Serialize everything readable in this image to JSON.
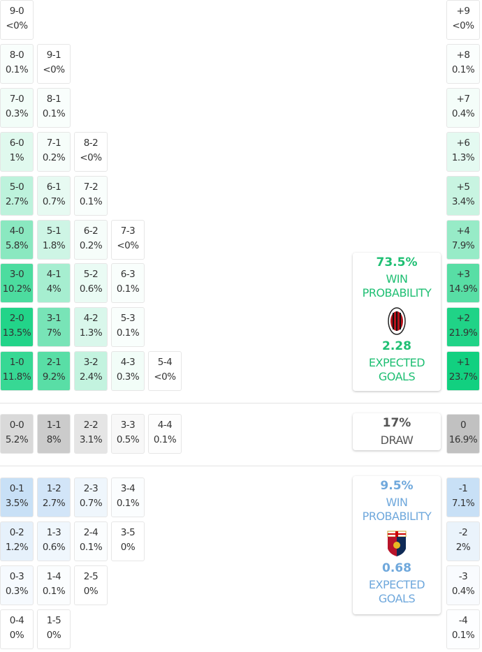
{
  "colors": {
    "home": "#00d27a",
    "away": "#5fa0d8",
    "draw": "#9a9a9a",
    "home_text": "#1fbf73",
    "away_text": "#6fa8dc",
    "draw_text": "#555555"
  },
  "home": {
    "rows": [
      [
        {
          "score": "9-0",
          "pct": "<0%"
        }
      ],
      [
        {
          "score": "8-0",
          "pct": "0.1%"
        },
        {
          "score": "9-1",
          "pct": "<0%"
        }
      ],
      [
        {
          "score": "7-0",
          "pct": "0.3%"
        },
        {
          "score": "8-1",
          "pct": "0.1%"
        }
      ],
      [
        {
          "score": "6-0",
          "pct": "1%"
        },
        {
          "score": "7-1",
          "pct": "0.2%"
        },
        {
          "score": "8-2",
          "pct": "<0%"
        }
      ],
      [
        {
          "score": "5-0",
          "pct": "2.7%"
        },
        {
          "score": "6-1",
          "pct": "0.7%"
        },
        {
          "score": "7-2",
          "pct": "0.1%"
        }
      ],
      [
        {
          "score": "4-0",
          "pct": "5.8%"
        },
        {
          "score": "5-1",
          "pct": "1.8%"
        },
        {
          "score": "6-2",
          "pct": "0.2%"
        },
        {
          "score": "7-3",
          "pct": "<0%"
        }
      ],
      [
        {
          "score": "3-0",
          "pct": "10.2%"
        },
        {
          "score": "4-1",
          "pct": "4%"
        },
        {
          "score": "5-2",
          "pct": "0.6%"
        },
        {
          "score": "6-3",
          "pct": "0.1%"
        }
      ],
      [
        {
          "score": "2-0",
          "pct": "13.5%"
        },
        {
          "score": "3-1",
          "pct": "7%"
        },
        {
          "score": "4-2",
          "pct": "1.3%"
        },
        {
          "score": "5-3",
          "pct": "0.1%"
        }
      ],
      [
        {
          "score": "1-0",
          "pct": "11.8%"
        },
        {
          "score": "2-1",
          "pct": "9.2%"
        },
        {
          "score": "3-2",
          "pct": "2.4%"
        },
        {
          "score": "4-3",
          "pct": "0.3%"
        },
        {
          "score": "5-4",
          "pct": "<0%"
        }
      ]
    ],
    "margins": [
      {
        "score": "+9",
        "pct": "<0%"
      },
      {
        "score": "+8",
        "pct": "0.1%"
      },
      {
        "score": "+7",
        "pct": "0.4%"
      },
      {
        "score": "+6",
        "pct": "1.3%"
      },
      {
        "score": "+5",
        "pct": "3.4%"
      },
      {
        "score": "+4",
        "pct": "7.9%"
      },
      {
        "score": "+3",
        "pct": "14.9%"
      },
      {
        "score": "+2",
        "pct": "21.9%"
      },
      {
        "score": "+1",
        "pct": "23.7%"
      }
    ],
    "summary": {
      "win_pct": "73.5%",
      "win_label_1": "WIN",
      "win_label_2": "PROBABILITY",
      "xg": "2.28",
      "xg_label_1": "EXPECTED",
      "xg_label_2": "GOALS",
      "logo": "ac-milan-crest"
    }
  },
  "draw": {
    "row": [
      {
        "score": "0-0",
        "pct": "5.2%"
      },
      {
        "score": "1-1",
        "pct": "8%"
      },
      {
        "score": "2-2",
        "pct": "3.1%"
      },
      {
        "score": "3-3",
        "pct": "0.5%"
      },
      {
        "score": "4-4",
        "pct": "0.1%"
      }
    ],
    "margin": {
      "score": "0",
      "pct": "16.9%"
    },
    "summary": {
      "pct": "17%",
      "label": "DRAW"
    }
  },
  "away": {
    "rows": [
      [
        {
          "score": "0-1",
          "pct": "3.5%"
        },
        {
          "score": "1-2",
          "pct": "2.7%"
        },
        {
          "score": "2-3",
          "pct": "0.7%"
        },
        {
          "score": "3-4",
          "pct": "0.1%"
        }
      ],
      [
        {
          "score": "0-2",
          "pct": "1.2%"
        },
        {
          "score": "1-3",
          "pct": "0.6%"
        },
        {
          "score": "2-4",
          "pct": "0.1%"
        },
        {
          "score": "3-5",
          "pct": "0%"
        }
      ],
      [
        {
          "score": "0-3",
          "pct": "0.3%"
        },
        {
          "score": "1-4",
          "pct": "0.1%"
        },
        {
          "score": "2-5",
          "pct": "0%"
        }
      ],
      [
        {
          "score": "0-4",
          "pct": "0%"
        },
        {
          "score": "1-5",
          "pct": "0%"
        }
      ]
    ],
    "margins": [
      {
        "score": "-1",
        "pct": "7.1%"
      },
      {
        "score": "-2",
        "pct": "2%"
      },
      {
        "score": "-3",
        "pct": "0.4%"
      },
      {
        "score": "-4",
        "pct": "0.1%"
      }
    ],
    "summary": {
      "win_pct": "9.5%",
      "win_label_1": "WIN",
      "win_label_2": "PROBABILITY",
      "xg": "0.68",
      "xg_label_1": "EXPECTED",
      "xg_label_2": "GOALS",
      "logo": "genoa-crest"
    }
  }
}
